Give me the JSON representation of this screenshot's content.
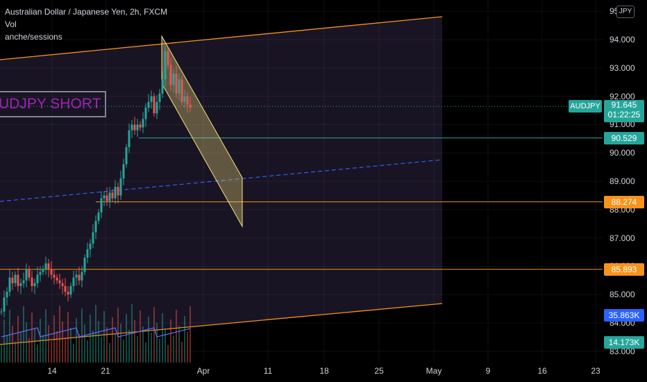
{
  "legend": {
    "title": "Australian Dollar / Japanese Yen, 2h, FXCM",
    "line2": "Vol",
    "line3": "anche/sessions"
  },
  "currency_button": "JPY",
  "note_text": "UDJPY SHORT",
  "symbol_tag": "AUDJPY",
  "price_axis": {
    "ticks": [
      "95.000",
      "94.000",
      "93.000",
      "92.000",
      "91.000",
      "90.000",
      "89.000",
      "88.000",
      "87.000",
      "86.000",
      "85.000",
      "84.000",
      "83.000"
    ],
    "tick_values": [
      95,
      94,
      93,
      92,
      91,
      90,
      89,
      88,
      87,
      86,
      85,
      84,
      83
    ],
    "range": [
      82.6,
      95.4
    ]
  },
  "time_axis": {
    "labels": [
      "14",
      "21",
      "Apr",
      "11",
      "18",
      "25",
      "May",
      "9",
      "16",
      "23"
    ]
  },
  "price_tags": [
    {
      "label": "91.645",
      "sub": "01:22:25",
      "value": 91.645,
      "color": "#26a69a",
      "kind": "live"
    },
    {
      "label": "90.529",
      "value": 90.529,
      "color": "#26a69a"
    },
    {
      "label": "88.274",
      "value": 88.274,
      "color": "#f7931a"
    },
    {
      "label": "85.893",
      "value": 85.893,
      "color": "#f7931a"
    },
    {
      "label": "35.863K",
      "color": "#2962ff"
    },
    {
      "label": "14.173K",
      "color": "#26a69a"
    }
  ],
  "colors": {
    "up": "#26a69a",
    "down": "#ef5350",
    "channel": "#f7931a",
    "median": "#2962ff",
    "flag": "#f6e27f",
    "hline_teal": "#26a69a",
    "hline_orange": "#f7931a"
  },
  "chart_data": {
    "type": "candlestick",
    "symbol": "AUDJPY",
    "timeframe": "2h",
    "ylim": [
      82.6,
      95.4
    ],
    "last_price": 91.645,
    "countdown": "01:22:25",
    "horizontal_levels": [
      90.529,
      88.274,
      85.893
    ],
    "close_path": [
      [
        0,
        84.4
      ],
      [
        4,
        84.9
      ],
      [
        8,
        85.1
      ],
      [
        12,
        85.6
      ],
      [
        16,
        85.4
      ],
      [
        20,
        85.7
      ],
      [
        24,
        85.3
      ],
      [
        28,
        85.4
      ],
      [
        32,
        85.5
      ],
      [
        36,
        85.9
      ],
      [
        40,
        85.6
      ],
      [
        44,
        85.3
      ],
      [
        48,
        85.4
      ],
      [
        52,
        85.7
      ],
      [
        56,
        85.8
      ],
      [
        60,
        85.9
      ],
      [
        64,
        86.1
      ],
      [
        68,
        85.9
      ],
      [
        72,
        85.7
      ],
      [
        76,
        85.6
      ],
      [
        80,
        85.5
      ],
      [
        84,
        85.4
      ],
      [
        88,
        85.3
      ],
      [
        92,
        85.1
      ],
      [
        96,
        85.0
      ],
      [
        100,
        85.3
      ],
      [
        104,
        85.6
      ],
      [
        108,
        85.7
      ],
      [
        112,
        85.5
      ],
      [
        116,
        85.8
      ],
      [
        120,
        86.3
      ],
      [
        124,
        86.6
      ],
      [
        128,
        86.8
      ],
      [
        132,
        87.2
      ],
      [
        136,
        87.6
      ],
      [
        140,
        87.9
      ],
      [
        144,
        88.4
      ],
      [
        148,
        88.5
      ],
      [
        152,
        88.3
      ],
      [
        156,
        88.6
      ],
      [
        160,
        88.4
      ],
      [
        164,
        88.8
      ],
      [
        168,
        88.5
      ],
      [
        172,
        89.1
      ],
      [
        176,
        89.6
      ],
      [
        180,
        90.2
      ],
      [
        184,
        90.8
      ],
      [
        188,
        91.0
      ],
      [
        192,
        90.8
      ],
      [
        196,
        91.0
      ],
      [
        200,
        90.9
      ],
      [
        204,
        91.2
      ],
      [
        208,
        91.6
      ],
      [
        212,
        91.8
      ],
      [
        216,
        92.0
      ],
      [
        220,
        91.4
      ],
      [
        224,
        91.8
      ],
      [
        228,
        92.1
      ],
      [
        232,
        92.6
      ],
      [
        236,
        93.6
      ],
      [
        240,
        93.1
      ],
      [
        244,
        92.4
      ],
      [
        248,
        92.8
      ],
      [
        252,
        92.1
      ],
      [
        256,
        92.6
      ],
      [
        260,
        91.8
      ],
      [
        264,
        92.0
      ],
      [
        268,
        91.7
      ],
      [
        272,
        91.6
      ]
    ]
  }
}
